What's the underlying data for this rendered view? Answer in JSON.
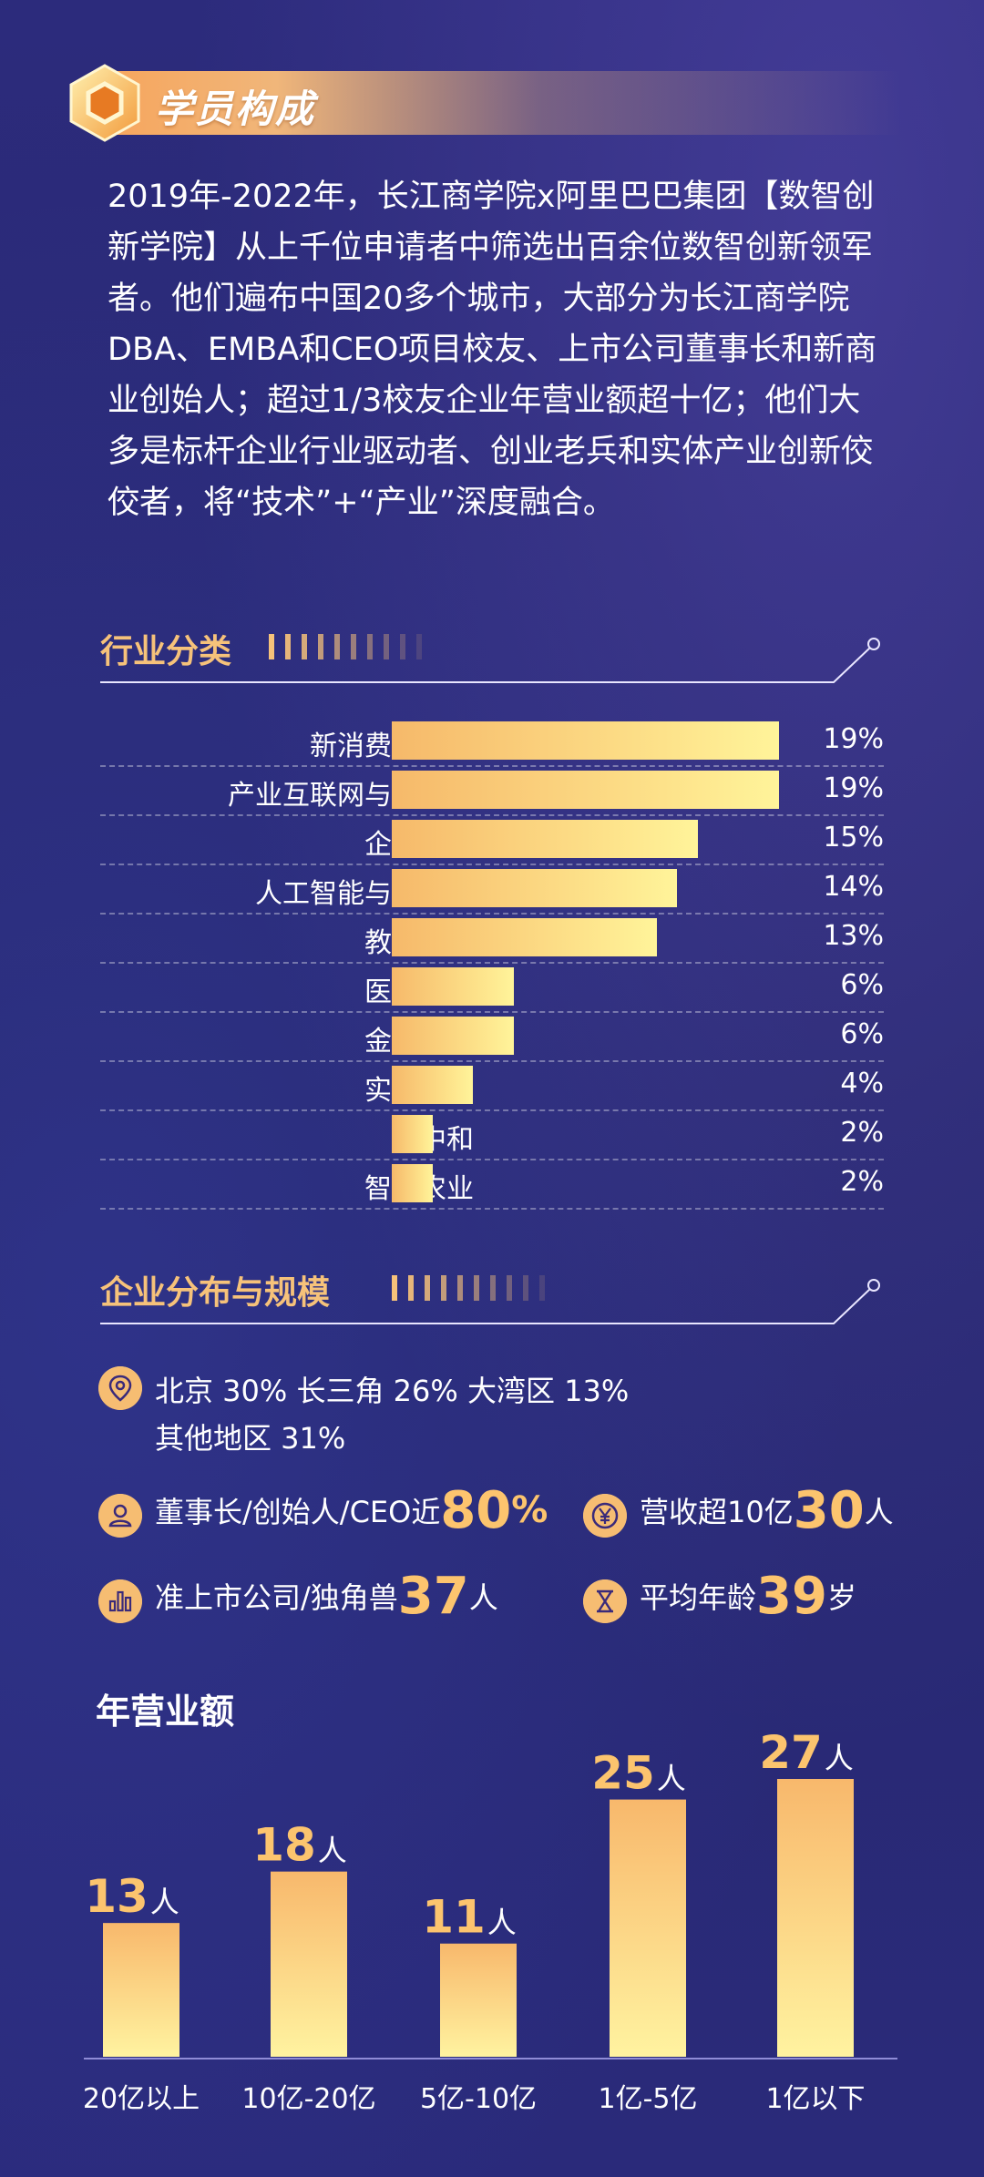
{
  "header": {
    "title": "学员构成",
    "icon": "hexagon-badge-icon"
  },
  "intro": "2019年-2022年，长江商学院x阿里巴巴集团【数智创新学院】从上千位申请者中筛选出百余位数智创新领军者。他们遍布中国20多个城市，大部分为长江商学院DBA、EMBA和CEO项目校友、上市公司董事长和新商业创始人；超过1/3校友企业年营业额超十亿；他们大多是标杆企业行业驱动者、创业老兵和实体产业创新佼佼者，将“技术”+“产业”深度融合。",
  "sections": {
    "industry": "行业分类",
    "distribution": "企业分布与规模"
  },
  "chart_data": [
    {
      "type": "bar",
      "orientation": "horizontal",
      "categories": [
        "新消费与营销",
        "产业互联网与大数据",
        "企业服务",
        "人工智能与硬科技",
        "教育文娱",
        "医疗健康",
        "金融科技",
        "实业创新",
        "碳中和",
        "智慧农业"
      ],
      "values": [
        19,
        19,
        15,
        14,
        13,
        6,
        6,
        4,
        2,
        2
      ],
      "value_labels": [
        "19%",
        "19%",
        "15%",
        "14%",
        "13%",
        "6%",
        "6%",
        "4%",
        "2%",
        "2%"
      ],
      "unit": "%",
      "xlim": [
        0,
        19
      ],
      "colors": {
        "bar_start": "#f6b96a",
        "bar_end": "#fff49a"
      }
    },
    {
      "type": "bar",
      "title": "年营业额",
      "categories": [
        "20亿以上",
        "10亿-20亿",
        "5亿-10亿",
        "1亿-5亿",
        "1亿以下"
      ],
      "values": [
        13,
        18,
        11,
        25,
        27
      ],
      "unit": "人",
      "ylim": [
        0,
        27
      ],
      "colors": {
        "bar_top": "#f8b86c",
        "bar_bottom": "#fff3a0",
        "label": "#fcc46e"
      }
    }
  ],
  "stats": {
    "regions": {
      "line1": "北京 30%   长三角 26%   大湾区 13%",
      "line2": "其他地区 31%",
      "icon": "location-pin-icon"
    },
    "ceo": {
      "prefix": "董事长/创始人/CEO近",
      "value": "80",
      "suffix": "%",
      "icon": "person-icon"
    },
    "revenue": {
      "prefix": "营收超10亿",
      "value": "30",
      "suffix": "人",
      "icon": "yen-coin-icon"
    },
    "listed": {
      "prefix": "准上市公司/独角兽",
      "value": "37",
      "suffix": "人",
      "icon": "bar-chart-icon"
    },
    "age": {
      "prefix": "平均年龄",
      "value": "39",
      "suffix": "岁",
      "icon": "hourglass-icon"
    }
  },
  "colors": {
    "background": "#2b2a78",
    "accent": "#fcc46e",
    "ribbon": "#f7a55c"
  }
}
